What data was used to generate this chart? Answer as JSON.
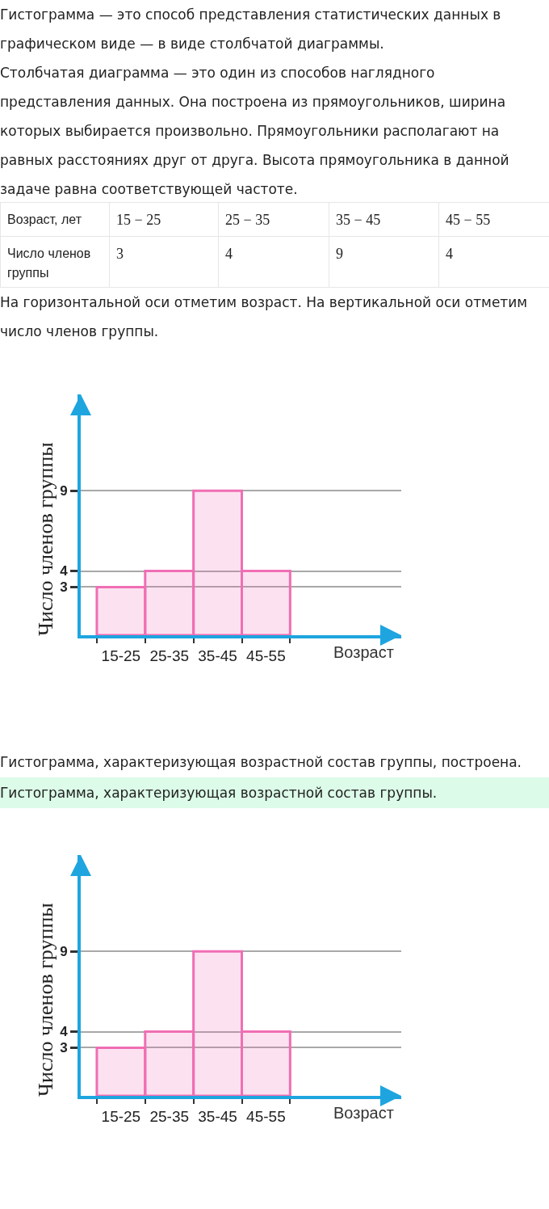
{
  "chart_data": [
    {
      "type": "other",
      "annotations": [
        "Гистограмма — это способ представления статистических данных в графическом виде — в виде столбчатой диаграммы.",
        "Столбчатая диаграмма — это один из способов наглядного представления данных. Она построена из прямоугольников, ширина которых выбирается произвольно. Прямоугольники располагают на равных расстояниях друг от друга. Высота прямоугольника в данной задаче равна соответствующей частоте."
      ],
      "xlabel": "Возраст, лет",
      "ylabel": "Число членов группы",
      "categories": [
        "15 − 25",
        "25 − 35",
        "35 − 45",
        "45 − 55"
      ],
      "values": [
        3,
        4,
        9,
        4
      ],
      "data_labels": true
    },
    {
      "type": "bar",
      "annotations": [
        "На горизонтальной оси отметим возраст. На вертикальной оси отметим число членов группы.",
        "Гистограмма, характеризующая возрастной состав группы, построена."
      ],
      "categories": [
        "15-25",
        "25-35",
        "35-45",
        "45-55"
      ],
      "values": [
        3,
        4,
        9,
        4
      ],
      "color": "#f06eb4",
      "xlabel": "Возраст",
      "ylabel": "Число членов группы",
      "ylim": [
        0,
        15
      ],
      "yticks": [
        3,
        4,
        9
      ],
      "grid": "y"
    },
    {
      "type": "bar",
      "title": "Гистограмма, характеризующая возрастной состав группы.",
      "categories": [
        "15-25",
        "25-35",
        "35-45",
        "45-55"
      ],
      "values": [
        3,
        4,
        9,
        4
      ],
      "color": "#f06eb4",
      "xlabel": "Возраст",
      "ylabel": "Число членов группы",
      "ylim": [
        0,
        15
      ],
      "yticks": [
        3,
        4,
        9
      ],
      "grid": "y"
    }
  ]
}
